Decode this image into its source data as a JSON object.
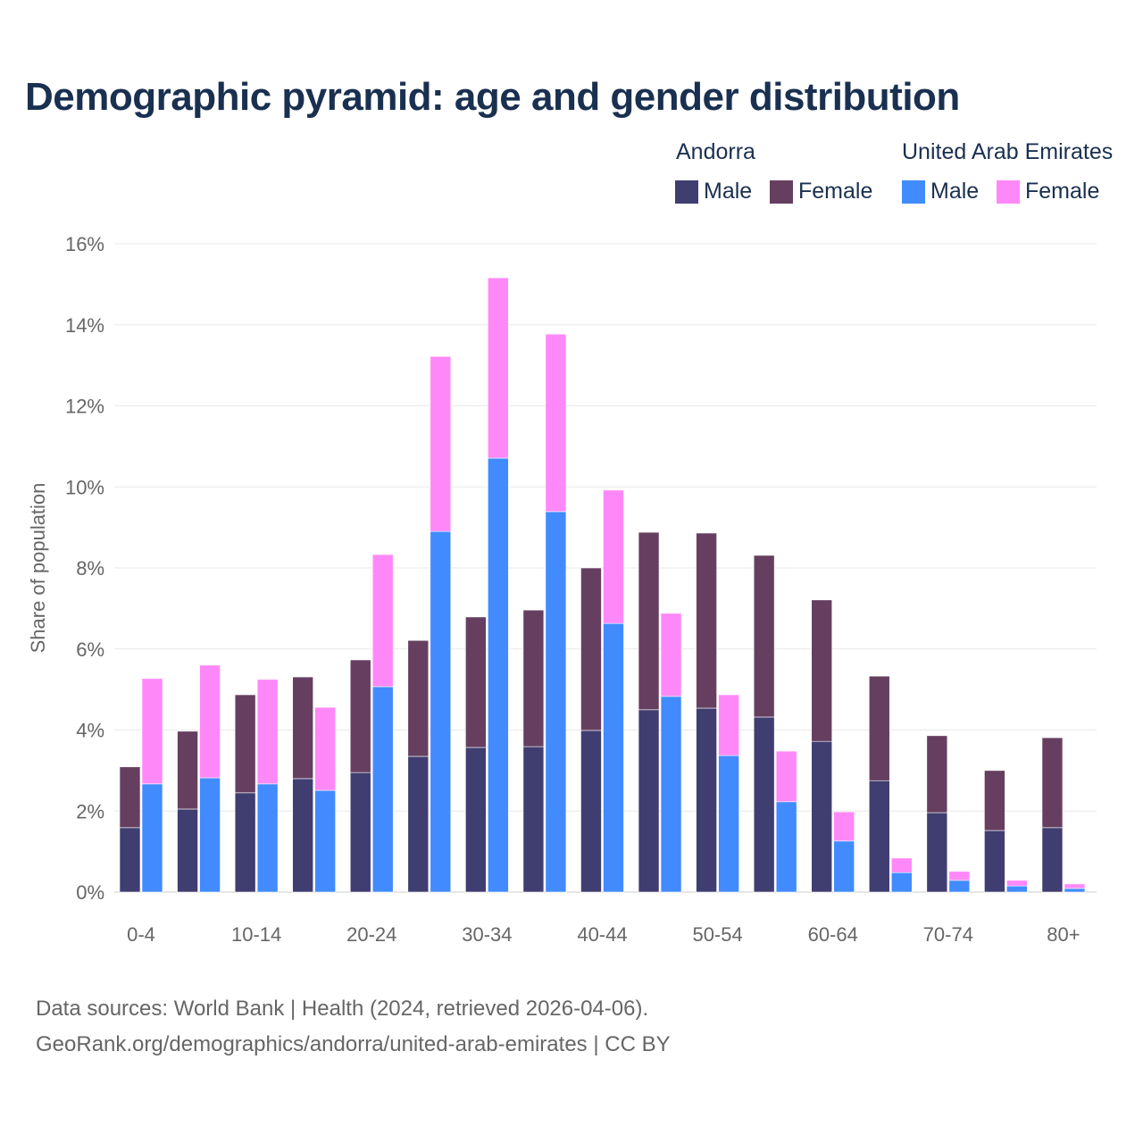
{
  "chart_data": {
    "type": "bar",
    "stacked": true,
    "title": "Demographic pyramid: age and gender distribution",
    "ylabel": "Share of population",
    "xlabel": "",
    "ylim": [
      0,
      16
    ],
    "yticks": [
      "0%",
      "2%",
      "4%",
      "6%",
      "8%",
      "10%",
      "12%",
      "14%",
      "16%"
    ],
    "grid": true,
    "legend_position": "top-right",
    "categories": [
      "0-4",
      "5-9",
      "10-14",
      "15-19",
      "20-24",
      "25-29",
      "30-34",
      "35-39",
      "40-44",
      "45-49",
      "50-54",
      "55-59",
      "60-64",
      "65-69",
      "70-74",
      "75-79",
      "80+"
    ],
    "xtick_labels": [
      "0-4",
      "10-14",
      "20-24",
      "30-34",
      "40-44",
      "50-54",
      "60-64",
      "70-74",
      "80+"
    ],
    "groups": [
      {
        "name": "Andorra",
        "series": [
          {
            "name": "Male",
            "color": "#403d70",
            "values": [
              1.59,
              2.05,
              2.45,
              2.8,
              2.95,
              3.35,
              3.57,
              3.59,
              3.99,
              4.5,
              4.54,
              4.32,
              3.72,
              2.75,
              1.96,
              1.52,
              1.59
            ]
          },
          {
            "name": "Female",
            "color": "#663f60",
            "values": [
              1.5,
              1.92,
              2.42,
              2.51,
              2.78,
              2.86,
              3.22,
              3.37,
              4.01,
              4.38,
              4.32,
              3.99,
              3.49,
              2.58,
              1.9,
              1.48,
              2.22
            ]
          }
        ]
      },
      {
        "name": "United Arab Emirates",
        "series": [
          {
            "name": "Male",
            "color": "#418bff",
            "values": [
              2.67,
              2.82,
              2.67,
              2.51,
              5.07,
              8.9,
              10.71,
              9.39,
              6.63,
              4.83,
              3.37,
              2.23,
              1.26,
              0.48,
              0.29,
              0.15,
              0.09
            ]
          },
          {
            "name": "Female",
            "color": "#ff88f8",
            "values": [
              2.6,
              2.78,
              2.58,
              2.05,
              3.26,
              4.32,
              4.45,
              4.38,
              3.29,
              2.05,
              1.5,
              1.25,
              0.72,
              0.36,
              0.22,
              0.14,
              0.11
            ]
          }
        ]
      }
    ]
  },
  "footer": {
    "line1": "Data sources: World Bank | Health (2024, retrieved 2026-04-06).",
    "line2": "GeoRank.org/demographics/andorra/united-arab-emirates | CC BY"
  }
}
